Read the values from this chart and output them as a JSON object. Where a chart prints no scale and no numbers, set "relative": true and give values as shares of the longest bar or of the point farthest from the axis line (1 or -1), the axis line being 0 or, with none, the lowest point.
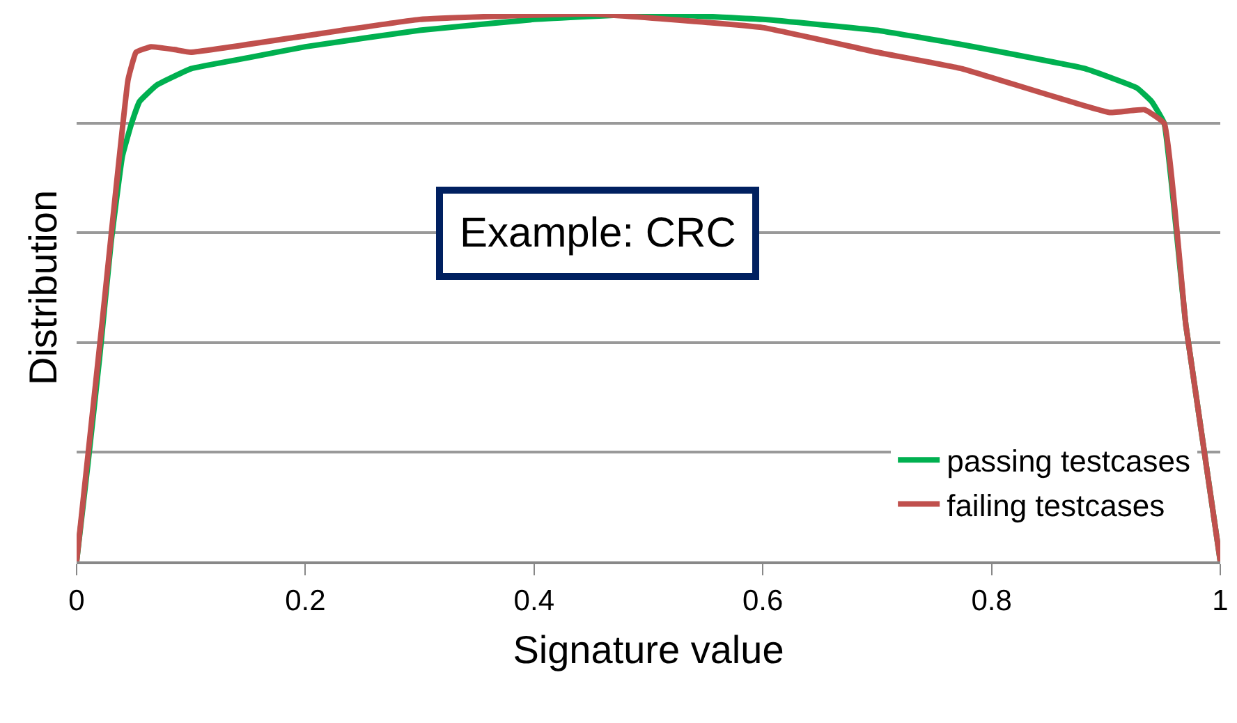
{
  "chart_data": {
    "type": "line",
    "relative": true,
    "xlabel": "Signature value",
    "ylabel": "Distribution",
    "xlim": [
      0,
      1
    ],
    "xticks": [
      0,
      0.2,
      0.4,
      0.6,
      0.8,
      1
    ],
    "grid": "y",
    "legend": "bottom right",
    "marker": "none",
    "line_style": "solid",
    "annotations": [
      "Example: CRC"
    ],
    "series": [
      {
        "name": "passing testcases",
        "color": "#00b050",
        "x": [
          0,
          0.01,
          0.02,
          0.03,
          0.04,
          0.048,
          0.055,
          0.07,
          0.1,
          0.15,
          0.2,
          0.3,
          0.4,
          0.5,
          0.6,
          0.7,
          0.774,
          0.882,
          0.927,
          0.94,
          0.951,
          0.97,
          1
        ],
        "values": [
          0,
          0.18,
          0.37,
          0.58,
          0.74,
          0.8,
          0.84,
          0.87,
          0.9,
          0.92,
          0.94,
          0.97,
          0.99,
          1,
          0.99,
          0.97,
          0.944,
          0.9,
          0.865,
          0.84,
          0.8,
          0.43,
          0
        ]
      },
      {
        "name": "failing testcases",
        "color": "#c0504d",
        "x": [
          0,
          0.022,
          0.045,
          0.052,
          0.065,
          0.085,
          0.1,
          0.2,
          0.3,
          0.45,
          0.6,
          0.7,
          0.774,
          0.903,
          0.934,
          0.951,
          0.97,
          1
        ],
        "values": [
          0,
          0.43,
          0.88,
          0.93,
          0.94,
          0.935,
          0.93,
          0.96,
          0.99,
          1,
          0.975,
          0.93,
          0.9,
          0.82,
          0.825,
          0.8,
          0.43,
          0
        ]
      }
    ]
  }
}
